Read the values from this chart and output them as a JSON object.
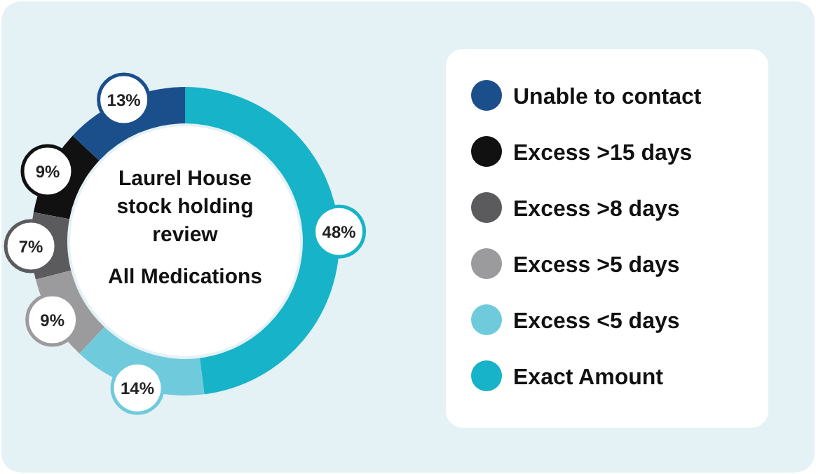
{
  "chart_data": {
    "type": "donut",
    "title": "Laurel House stock holding review",
    "subtitle": "All Medications",
    "categories": [
      "Unable to contact",
      "Excess >15 days",
      "Excess >8 days",
      "Excess >5 days",
      "Excess <5 days",
      "Exact Amount"
    ],
    "values": [
      13,
      9,
      7,
      9,
      14,
      48
    ],
    "value_labels": [
      "13%",
      "9%",
      "7%",
      "9%",
      "14%",
      "48%"
    ],
    "colors": [
      "#1b4f8c",
      "#111111",
      "#5b5b5d",
      "#9b9b9e",
      "#6fcbdc",
      "#17b3c8"
    ],
    "legend": "right"
  }
}
